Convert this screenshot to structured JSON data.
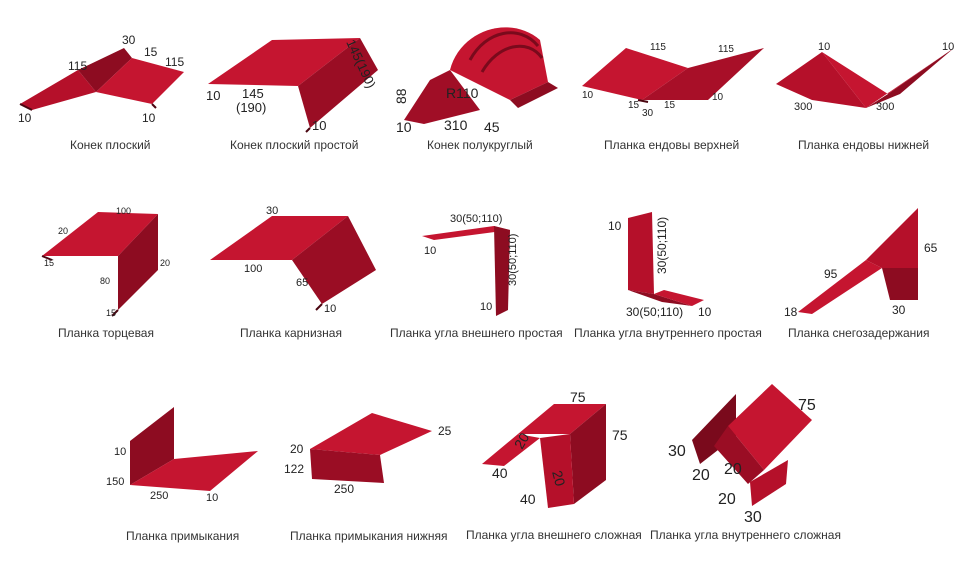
{
  "colors": {
    "metal": "#b5102a",
    "metal_dark": "#7a0a1c",
    "metal_light": "#d8304a",
    "edge": "#4a0510",
    "text": "#222222"
  },
  "items": [
    {
      "caption": "Конек плоский",
      "dims": [
        "115",
        "30",
        "15",
        "115",
        "10",
        "10"
      ]
    },
    {
      "caption": "Конек плоский простой",
      "dims": [
        "145(190)",
        "10",
        "145",
        "(190)",
        "10"
      ]
    },
    {
      "caption": "Конек полукруглый",
      "dims": [
        "88",
        "R110",
        "10",
        "310",
        "45"
      ]
    },
    {
      "caption": "Планка ендовы верхней",
      "dims": [
        "115",
        "115",
        "10",
        "15",
        "15",
        "30",
        "10"
      ]
    },
    {
      "caption": "Планка ендовы нижней",
      "dims": [
        "10",
        "10",
        "300",
        "300"
      ]
    },
    {
      "caption": "Планка торцевая",
      "dims": [
        "100",
        "20",
        "15",
        "80",
        "20",
        "15"
      ]
    },
    {
      "caption": "Планка карнизная",
      "dims": [
        "30",
        "100",
        "65",
        "10"
      ]
    },
    {
      "caption": "Планка угла внешнего простая",
      "dims": [
        "30(50;110)",
        "10",
        "30(50;110)",
        "10"
      ]
    },
    {
      "caption": "Планка угла внутреннего простая",
      "dims": [
        "10",
        "30(50;110)",
        "30(50;110)",
        "10"
      ]
    },
    {
      "caption": "Планка снегозадержания",
      "dims": [
        "65",
        "95",
        "18",
        "30"
      ]
    },
    {
      "caption": "Планка примыкания",
      "dims": [
        "10",
        "150",
        "250",
        "10"
      ]
    },
    {
      "caption": "Планка примыкания нижняя",
      "dims": [
        "20",
        "25",
        "122",
        "250"
      ]
    },
    {
      "caption": "Планка угла внешнего сложная",
      "dims": [
        "75",
        "20",
        "75",
        "40",
        "20",
        "40"
      ]
    },
    {
      "caption": "Планка угла внутреннего сложная",
      "dims": [
        "75",
        "30",
        "20",
        "20",
        "20",
        "30"
      ]
    }
  ]
}
